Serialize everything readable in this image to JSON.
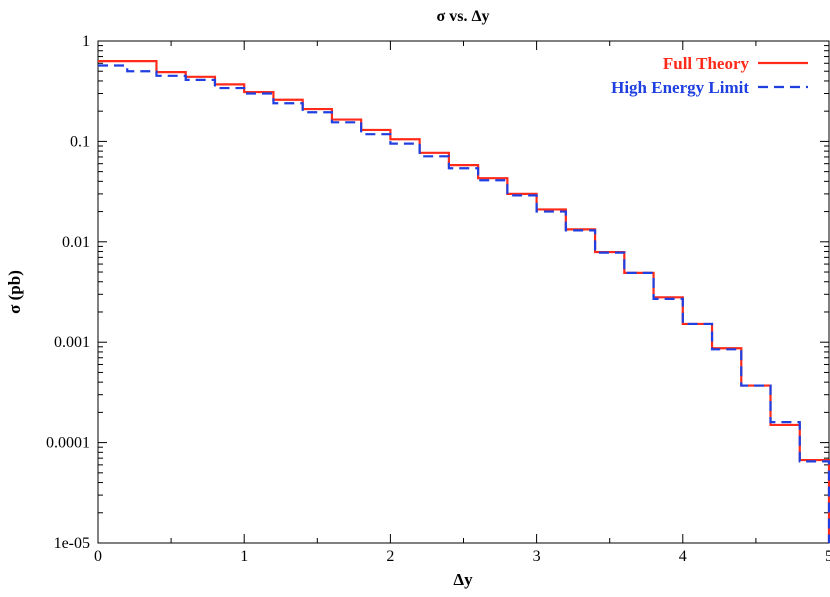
{
  "chart_data": {
    "type": "line",
    "title": "σ vs. Δy",
    "xlabel": "Δy",
    "ylabel": "σ (pb)",
    "xlim": [
      0,
      5
    ],
    "ylim": [
      1e-05,
      1
    ],
    "yscale": "log",
    "grid": false,
    "legend_position": "top-right",
    "x_ticks": [
      "0",
      "1",
      "2",
      "3",
      "4",
      "5"
    ],
    "y_ticks": [
      "1e-05",
      "0.0001",
      "0.001",
      "0.01",
      "0.1",
      "1"
    ],
    "bin_edges": [
      0,
      0.2,
      0.4,
      0.6,
      0.8,
      1.0,
      1.2,
      1.4,
      1.6,
      1.8,
      2.0,
      2.2,
      2.4,
      2.6,
      2.8,
      3.0,
      3.2,
      3.4,
      3.6,
      3.8,
      4.0,
      4.2,
      4.4,
      4.6,
      4.8,
      5.0
    ],
    "series": [
      {
        "name": "Full Theory",
        "color": "#ff2a1a",
        "dash": "solid",
        "values": [
          0.63,
          0.63,
          0.49,
          0.44,
          0.37,
          0.31,
          0.26,
          0.21,
          0.165,
          0.13,
          0.105,
          0.077,
          0.058,
          0.043,
          0.03,
          0.021,
          0.0133,
          0.0079,
          0.0049,
          0.0028,
          0.00152,
          0.00087,
          0.00037,
          0.00015,
          6.7e-05
        ]
      },
      {
        "name": "High Energy Limit",
        "color": "#1f3fe0",
        "dash": "dashed",
        "values": [
          0.57,
          0.5,
          0.45,
          0.41,
          0.34,
          0.3,
          0.24,
          0.195,
          0.155,
          0.118,
          0.095,
          0.071,
          0.054,
          0.041,
          0.029,
          0.02,
          0.013,
          0.0078,
          0.0049,
          0.0027,
          0.00152,
          0.00085,
          0.00037,
          0.00016,
          6.5e-05
        ]
      }
    ]
  }
}
